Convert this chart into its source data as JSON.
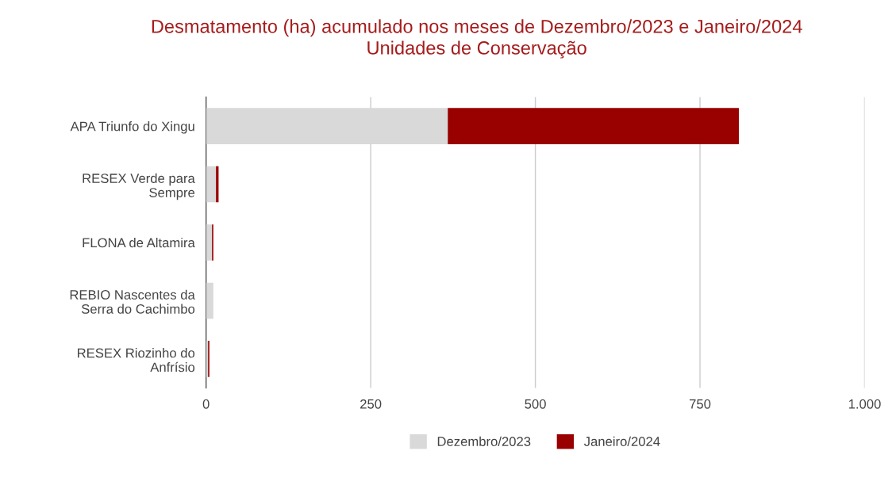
{
  "chart_data": {
    "type": "bar",
    "orientation": "horizontal",
    "stacked": true,
    "title": "Desmatamento (ha) acumulado nos meses de Dezembro/2023 e Janeiro/2024\nUnidades de Conservação",
    "categories": [
      "APA Triunfo do Xingu",
      "RESEX Verde para\nSempre",
      "FLONA de Altamira",
      "REBIO Nascentes da\nSerra do Cachimbo",
      "RESEX Riozinho do\nAnfrísio"
    ],
    "series": [
      {
        "name": "Dezembro/2023",
        "color": "#d9d9d9",
        "values": [
          367,
          15,
          9,
          11,
          3
        ]
      },
      {
        "name": "Janeiro/2024",
        "color": "#990000",
        "values": [
          442,
          4,
          2,
          0,
          2
        ]
      }
    ],
    "xlim": [
      0,
      1000
    ],
    "xticks": [
      0,
      250,
      500,
      750,
      {
        "value": 1000,
        "label": "1.000"
      }
    ],
    "grid": "x",
    "legend": "bottom"
  }
}
